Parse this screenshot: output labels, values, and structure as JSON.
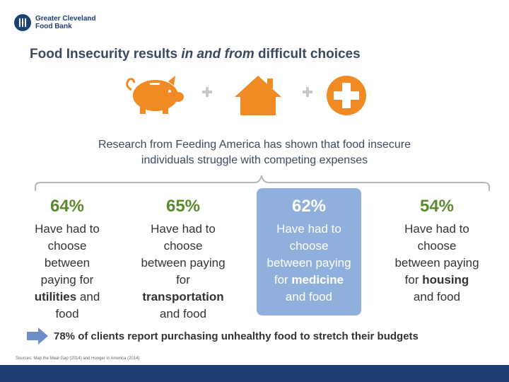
{
  "logo": {
    "line1": "Greater Cleveland",
    "line2": "Food Bank"
  },
  "title": {
    "part1": "Food Insecurity results ",
    "part2_italic": "in and from",
    "part3": " difficult choices"
  },
  "icons": {
    "items": [
      "piggy-bank-icon",
      "house-icon",
      "medical-cross-icon"
    ],
    "accent_color": "#f08a24",
    "separator_color": "#c8c8c8"
  },
  "research": {
    "line1": "Research from Feeding America has shown that food insecure",
    "line2": "individuals struggle with competing expenses"
  },
  "stats": [
    {
      "pct": "64%",
      "l1": "Have had to",
      "l2": "choose",
      "l3": "between",
      "l4": "paying for",
      "bold": "utilities",
      "tail": " and",
      "l6": "food"
    },
    {
      "pct": "65%",
      "l1": "Have had to",
      "l2": "choose",
      "l3": "between paying",
      "l4": "for",
      "bold": "transportation",
      "l6": "and food"
    },
    {
      "pct": "62%",
      "l1": "Have had to",
      "l2": "choose",
      "l3": "between paying",
      "pre": "for ",
      "bold": "medicine",
      "l6": "and food"
    },
    {
      "pct": "54%",
      "l1": "Have had to",
      "l2": "choose",
      "l3": "between paying",
      "pre": "for ",
      "bold": "housing",
      "l6": "and food"
    }
  ],
  "callout": {
    "text": "78% of clients report purchasing unhealthy food to stretch their budgets",
    "arrow_color": "#6d8ec9"
  },
  "sources": "Sources: Map the Meal Gap (2014) and Hunger in America (2014)",
  "colors": {
    "brand_navy": "#1f3f73",
    "highlight_blue": "#8fb0dc",
    "text_gray": "#3a4a5c"
  }
}
